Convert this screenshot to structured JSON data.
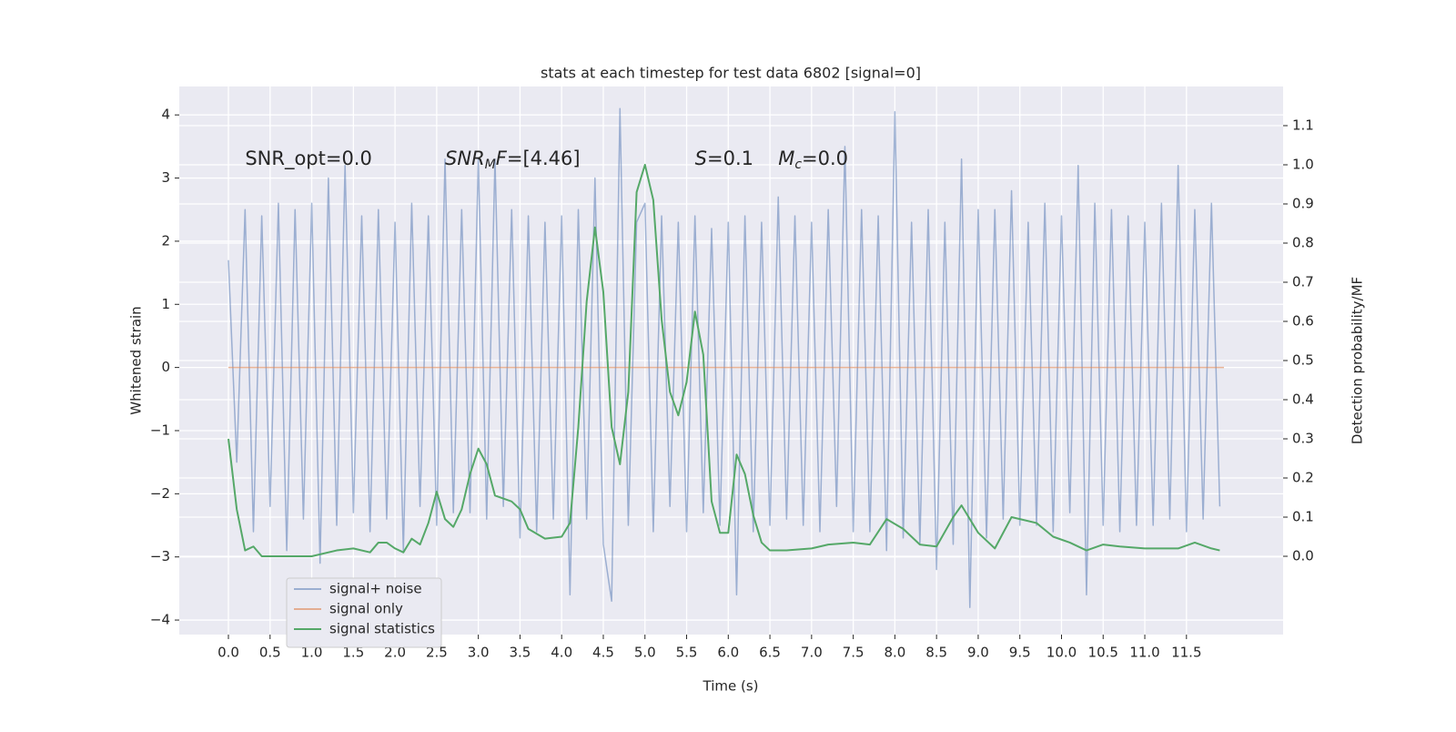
{
  "chart_data": {
    "type": "line",
    "title": "stats at each timestep for test data 6802 [signal=0]",
    "xlabel": "Time (s)",
    "ylabel": "Whitened strain",
    "y2label": "Detection probability/MF",
    "annotations": [
      {
        "x": 0.2,
        "y": 3.3,
        "parts": [
          {
            "text": "SNR_opt=0.0",
            "style": "normal"
          }
        ]
      },
      {
        "x": 2.6,
        "y": 3.3,
        "parts": [
          {
            "text": "SNR",
            "style": "italic"
          },
          {
            "text": "M",
            "style": "sub"
          },
          {
            "text": "F",
            "style": "italic"
          },
          {
            "text": "=[4.46]",
            "style": "normal"
          }
        ]
      },
      {
        "x": 5.6,
        "y": 3.3,
        "parts": [
          {
            "text": "S",
            "style": "italic"
          },
          {
            "text": "=0.1",
            "style": "normal"
          }
        ]
      },
      {
        "x": 6.6,
        "y": 3.3,
        "parts": [
          {
            "text": "M",
            "style": "italic"
          },
          {
            "text": "c",
            "style": "sub"
          },
          {
            "text": "=0.0",
            "style": "normal"
          }
        ]
      }
    ],
    "series": [
      {
        "name": "signal+ noise",
        "color": "#4c72b0",
        "opacity": 0.5,
        "axis": "y",
        "x": [
          0.0,
          0.1,
          0.2,
          0.3,
          0.4,
          0.5,
          0.6,
          0.7,
          0.8,
          0.9,
          1.0,
          1.1,
          1.2,
          1.3,
          1.4,
          1.5,
          1.6,
          1.7,
          1.8,
          1.9,
          2.0,
          2.1,
          2.2,
          2.3,
          2.4,
          2.5,
          2.6,
          2.7,
          2.8,
          2.9,
          3.0,
          3.1,
          3.2,
          3.3,
          3.4,
          3.5,
          3.6,
          3.7,
          3.8,
          3.9,
          4.0,
          4.1,
          4.2,
          4.3,
          4.4,
          4.5,
          4.6,
          4.7,
          4.8,
          4.9,
          5.0,
          5.1,
          5.2,
          5.3,
          5.4,
          5.5,
          5.6,
          5.7,
          5.8,
          5.9,
          6.0,
          6.1,
          6.2,
          6.3,
          6.4,
          6.5,
          6.6,
          6.7,
          6.8,
          6.9,
          7.0,
          7.1,
          7.2,
          7.3,
          7.4,
          7.5,
          7.6,
          7.7,
          7.8,
          7.9,
          8.0,
          8.1,
          8.2,
          8.3,
          8.4,
          8.5,
          8.6,
          8.7,
          8.8,
          8.9,
          9.0,
          9.1,
          9.2,
          9.3,
          9.4,
          9.5,
          9.6,
          9.7,
          9.8,
          9.9,
          10.0,
          10.1,
          10.2,
          10.3,
          10.4,
          10.5,
          10.6,
          10.7,
          10.8,
          10.9,
          11.0,
          11.1,
          11.2,
          11.3,
          11.4,
          11.5,
          11.6,
          11.7,
          11.8,
          11.9
        ],
        "values": [
          1.7,
          -1.5,
          2.5,
          -2.6,
          2.4,
          -2.2,
          2.6,
          -2.9,
          2.5,
          -2.4,
          2.6,
          -3.1,
          3.0,
          -2.5,
          3.2,
          -2.3,
          2.4,
          -2.6,
          2.5,
          -2.4,
          2.3,
          -2.9,
          2.6,
          -2.2,
          2.4,
          -2.5,
          3.3,
          -2.3,
          2.5,
          -2.3,
          3.3,
          -2.4,
          3.3,
          -2.2,
          2.5,
          -2.7,
          2.4,
          -2.6,
          2.3,
          -2.4,
          2.4,
          -3.6,
          2.5,
          -2.4,
          3.0,
          -2.8,
          -3.7,
          4.1,
          -2.5,
          2.3,
          2.6,
          -2.6,
          2.4,
          -2.2,
          2.3,
          -2.6,
          2.4,
          -2.3,
          2.2,
          -2.5,
          2.3,
          -3.6,
          2.4,
          -2.6,
          2.3,
          -2.5,
          2.7,
          -2.4,
          2.4,
          -2.5,
          2.3,
          -2.6,
          2.5,
          -2.2,
          3.5,
          -2.6,
          2.5,
          -2.6,
          2.4,
          -2.9,
          4.05,
          -2.7,
          2.3,
          -2.8,
          2.5,
          -3.2,
          2.3,
          -2.8,
          3.3,
          -3.8,
          2.5,
          -2.7,
          2.5,
          -2.4,
          2.8,
          -2.5,
          2.3,
          -2.5,
          2.6,
          -2.6,
          2.4,
          -2.3,
          3.2,
          -3.6,
          2.6,
          -2.5,
          2.5,
          -2.6,
          2.4,
          -2.5,
          2.3,
          -2.5,
          2.6,
          -2.4,
          3.2,
          -2.6,
          2.5,
          -2.4,
          2.6,
          -2.2
        ]
      },
      {
        "name": "signal only",
        "color": "#dd8452",
        "opacity": 0.6,
        "axis": "y",
        "x": [
          0.0,
          11.95
        ],
        "values": [
          0,
          0
        ]
      },
      {
        "name": "signal statistics",
        "color": "#55a868",
        "opacity": 1,
        "axis": "y2",
        "x": [
          0.0,
          0.1,
          0.2,
          0.3,
          0.4,
          0.5,
          0.7,
          1.0,
          1.3,
          1.5,
          1.7,
          1.8,
          1.9,
          2.0,
          2.1,
          2.2,
          2.3,
          2.4,
          2.5,
          2.6,
          2.7,
          2.8,
          2.9,
          3.0,
          3.1,
          3.2,
          3.4,
          3.5,
          3.6,
          3.8,
          4.0,
          4.1,
          4.2,
          4.3,
          4.4,
          4.5,
          4.6,
          4.7,
          4.8,
          4.9,
          5.0,
          5.1,
          5.2,
          5.3,
          5.4,
          5.5,
          5.6,
          5.7,
          5.8,
          5.9,
          6.0,
          6.1,
          6.2,
          6.3,
          6.4,
          6.5,
          6.7,
          7.0,
          7.2,
          7.5,
          7.7,
          7.9,
          8.1,
          8.3,
          8.5,
          8.7,
          8.8,
          9.0,
          9.2,
          9.4,
          9.5,
          9.7,
          9.9,
          10.1,
          10.3,
          10.5,
          10.7,
          11.0,
          11.2,
          11.4,
          11.6,
          11.8,
          11.9
        ],
        "values": [
          0.3,
          0.12,
          0.015,
          0.025,
          0.0,
          0.0,
          0.0,
          0.0,
          0.015,
          0.02,
          0.01,
          0.035,
          0.035,
          0.02,
          0.01,
          0.045,
          0.03,
          0.085,
          0.165,
          0.095,
          0.075,
          0.12,
          0.21,
          0.275,
          0.235,
          0.155,
          0.14,
          0.12,
          0.07,
          0.045,
          0.05,
          0.085,
          0.33,
          0.65,
          0.84,
          0.675,
          0.33,
          0.235,
          0.42,
          0.93,
          1.0,
          0.91,
          0.605,
          0.42,
          0.36,
          0.445,
          0.625,
          0.515,
          0.14,
          0.06,
          0.06,
          0.26,
          0.21,
          0.105,
          0.035,
          0.015,
          0.015,
          0.02,
          0.03,
          0.035,
          0.03,
          0.095,
          0.07,
          0.03,
          0.025,
          0.1,
          0.13,
          0.06,
          0.02,
          0.1,
          0.095,
          0.085,
          0.05,
          0.035,
          0.015,
          0.03,
          0.025,
          0.02,
          0.02,
          0.02,
          0.035,
          0.02,
          0.015
        ]
      }
    ],
    "xlim": [
      -0.59,
      12.66
    ],
    "ylim": [
      -4.23,
      4.45
    ],
    "y2lim": [
      -0.2,
      1.2
    ],
    "xticks": [
      {
        "value": 0,
        "label": "0.0"
      },
      0.5,
      {
        "value": 1,
        "label": "1.0"
      },
      1.5,
      {
        "value": 2,
        "label": "2.0"
      },
      2.5,
      {
        "value": 3,
        "label": "3.0"
      },
      3.5,
      {
        "value": 4,
        "label": "4.0"
      },
      4.5,
      {
        "value": 5,
        "label": "5.0"
      },
      5.5,
      {
        "value": 6,
        "label": "6.0"
      },
      6.5,
      {
        "value": 7,
        "label": "7.0"
      },
      7.5,
      {
        "value": 8,
        "label": "8.0"
      },
      8.5,
      {
        "value": 9,
        "label": "9.0"
      },
      9.5,
      {
        "value": 10,
        "label": "10.0"
      },
      10.5,
      {
        "value": 11,
        "label": "11.0"
      },
      11.5
    ],
    "yticks": [
      {
        "value": -4,
        "label": "−4"
      },
      {
        "value": -3,
        "label": "−3"
      },
      {
        "value": -2,
        "label": "−2"
      },
      {
        "value": -1,
        "label": "−1"
      },
      0,
      1,
      2,
      3,
      4
    ],
    "y2ticks": [
      {
        "value": 0,
        "label": "0.0"
      },
      0.1,
      0.2,
      0.3,
      0.4,
      0.5,
      0.6,
      0.7,
      0.8,
      0.9,
      {
        "value": 1,
        "label": "1.0"
      },
      1.1
    ],
    "grid": true,
    "legend": "lower left"
  }
}
